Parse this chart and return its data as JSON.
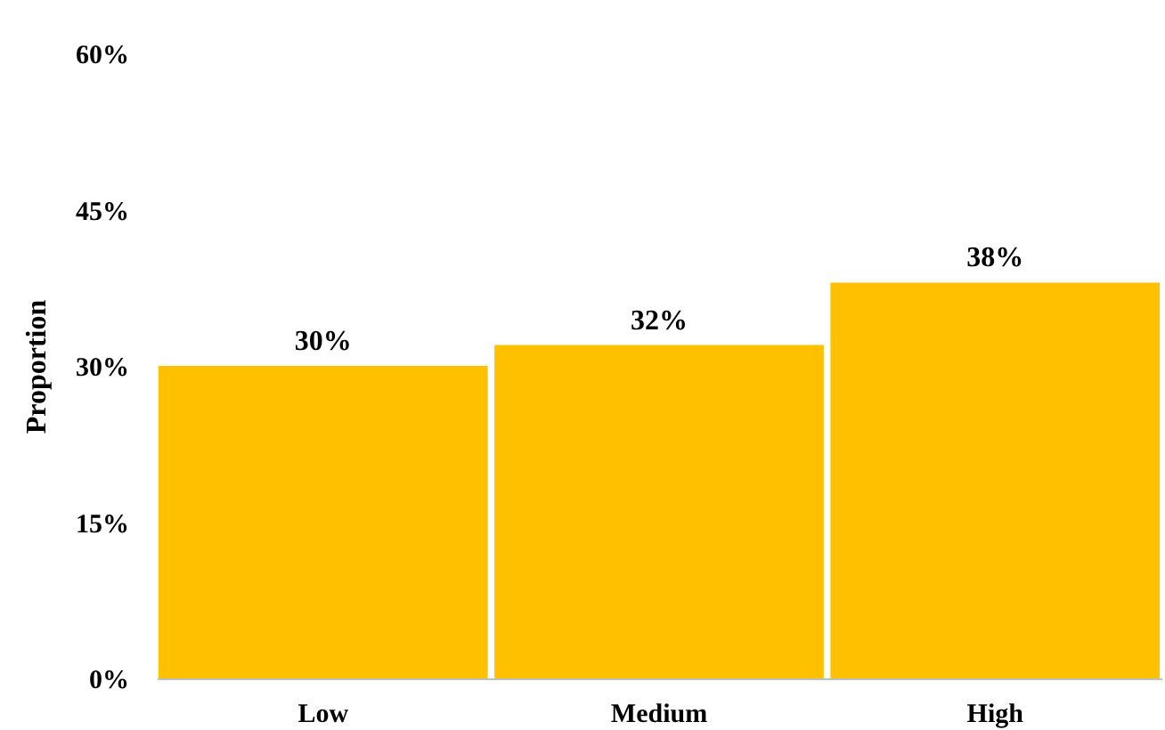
{
  "chart_data": {
    "type": "bar",
    "ylabel": "Proportion",
    "categories": [
      "Low",
      "Medium",
      "High"
    ],
    "values": [
      30,
      32,
      38
    ],
    "value_labels": [
      "30%",
      "32%",
      "38%"
    ],
    "color": "#ffc000",
    "ylim": [
      0,
      60
    ],
    "yticks": [
      {
        "value": 0,
        "label": "0%"
      },
      {
        "value": 15,
        "label": "15%"
      },
      {
        "value": 30,
        "label": "30%"
      },
      {
        "value": 45,
        "label": "45%"
      },
      {
        "value": 60,
        "label": "60%"
      }
    ],
    "grid": false
  }
}
